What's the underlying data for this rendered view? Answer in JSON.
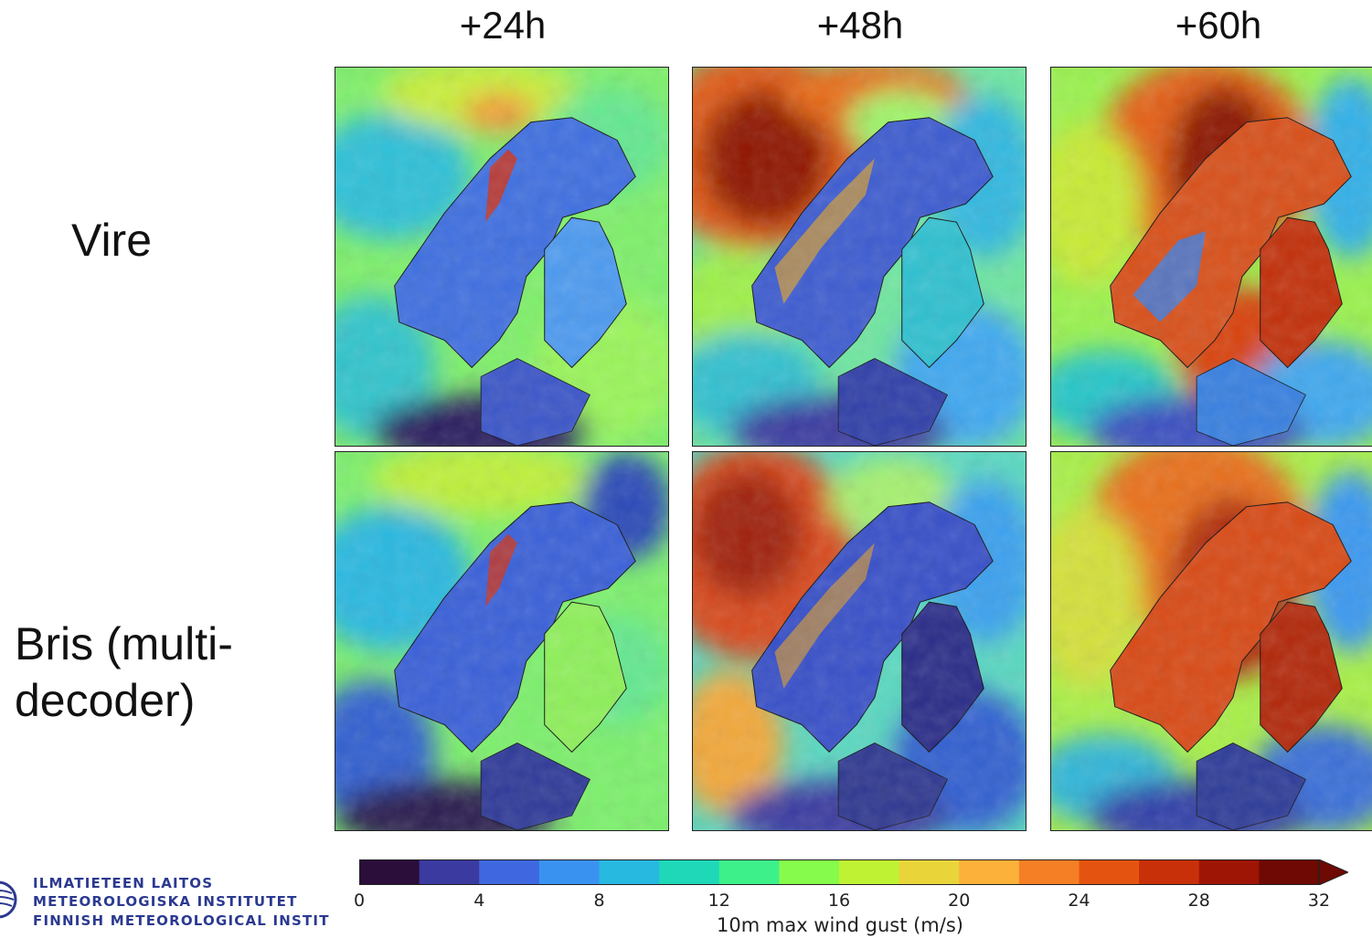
{
  "columns": [
    "+24h",
    "+48h",
    "+60h"
  ],
  "rows": [
    "Vire",
    "Bris (multi-\ndecoder)"
  ],
  "colorbar": {
    "ticks": [
      "0",
      "4",
      "8",
      "12",
      "16",
      "20",
      "24",
      "28",
      "32"
    ],
    "label": "10m max wind gust (m/s)",
    "colors": [
      "#2b0f3a",
      "#3b3aa0",
      "#3f68e0",
      "#3a92f0",
      "#27b9e0",
      "#1ed8b8",
      "#3ef08a",
      "#86fb4c",
      "#c0f234",
      "#e9d53a",
      "#fbb13a",
      "#f57f24",
      "#e45410",
      "#c8300a",
      "#9e1506",
      "#6e0a03"
    ]
  },
  "logo": {
    "lines": [
      "ILMATIETEEN LAITOS",
      "METEOROLOGISKA INSTITUTET",
      "FINNISH METEOROLOGICAL INSTIT"
    ]
  }
}
